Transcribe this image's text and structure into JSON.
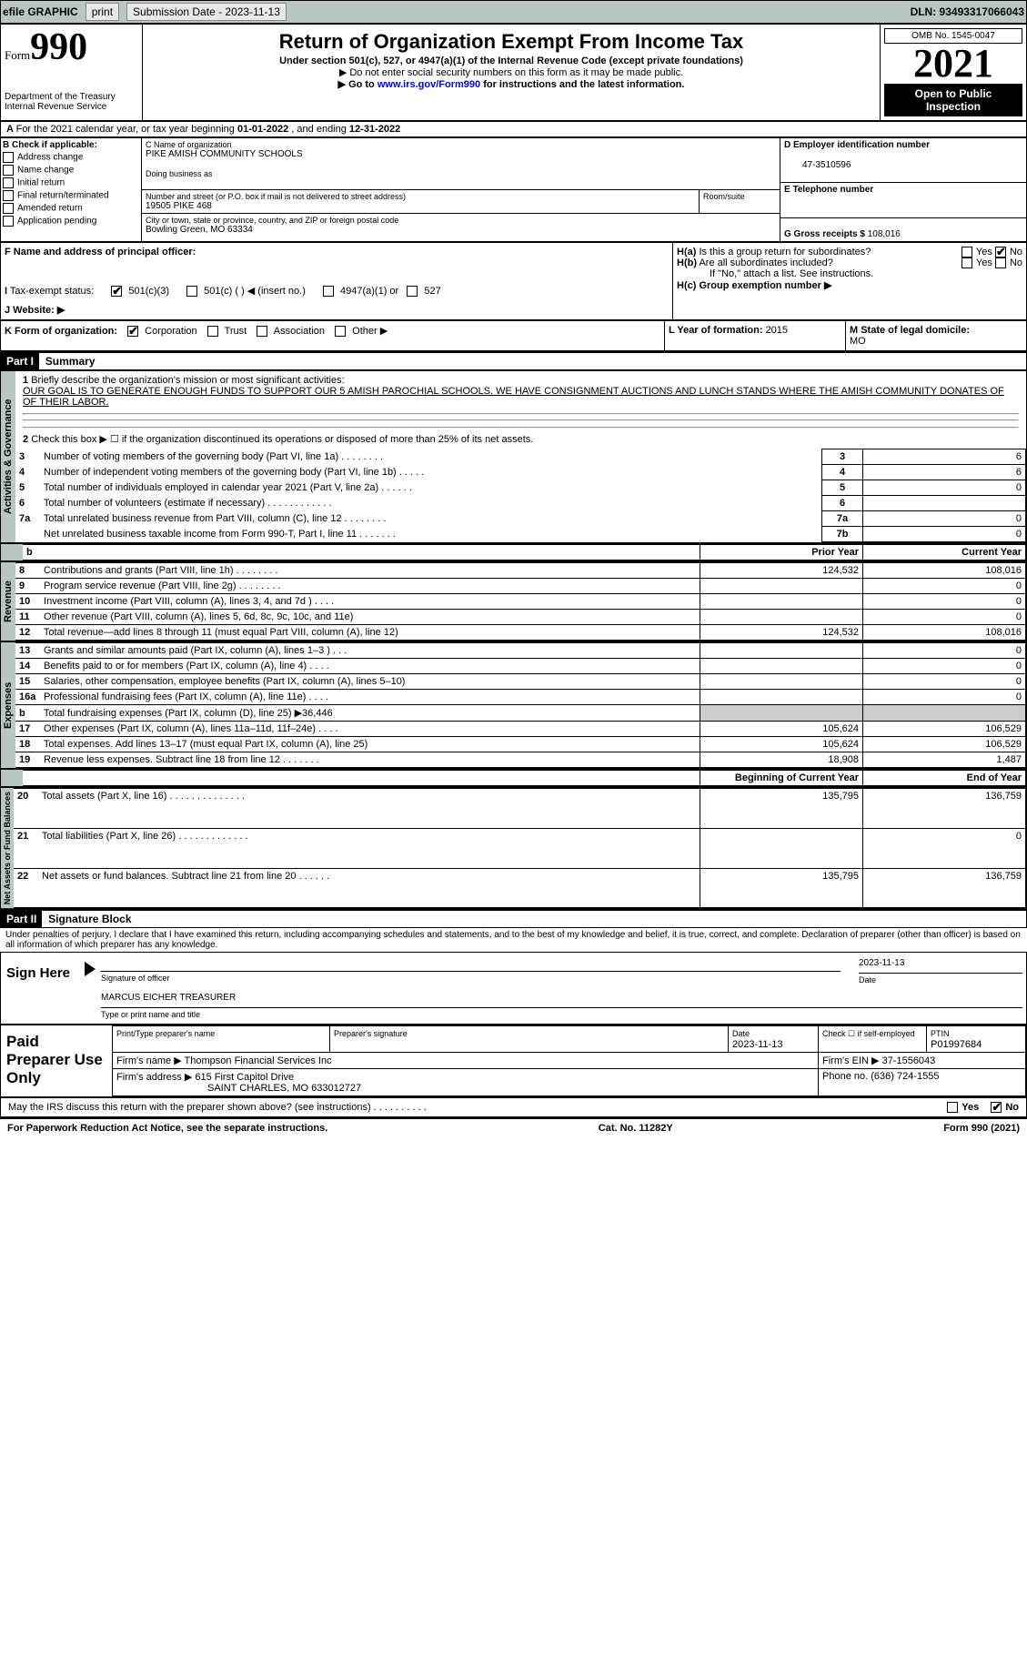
{
  "top_bar": {
    "efile": "efile GRAPHIC",
    "print": "print",
    "sub_label": "Submission Date - 2023-11-13",
    "dln_label": "DLN: 93493317066043"
  },
  "header": {
    "form_small": "Form",
    "form_num": "990",
    "dept": "Department of the Treasury",
    "irs": "Internal Revenue Service",
    "title": "Return of Organization Exempt From Income Tax",
    "sub1": "Under section 501(c), 527, or 4947(a)(1) of the Internal Revenue Code (except private foundations)",
    "sub2": "▶ Do not enter social security numbers on this form as it may be made public.",
    "sub3_pre": "▶ Go to ",
    "sub3_link": "www.irs.gov/Form990",
    "sub3_post": " for instructions and the latest information.",
    "omb": "OMB No. 1545-0047",
    "year": "2021",
    "open": "Open to Public Inspection"
  },
  "line_a": {
    "text_pre": "For the 2021 calendar year, or tax year beginning ",
    "begin": "01-01-2022",
    "mid": " , and ending ",
    "end": "12-31-2022"
  },
  "check_b": {
    "title": "B Check if applicable:",
    "items": [
      "Address change",
      "Name change",
      "Initial return",
      "Final return/terminated",
      "Amended return",
      "Application pending"
    ]
  },
  "c": {
    "name_lbl": "C Name of organization",
    "name": "PIKE AMISH COMMUNITY SCHOOLS",
    "dba_lbl": "Doing business as",
    "addr_lbl": "Number and street (or P.O. box if mail is not delivered to street address)",
    "room_lbl": "Room/suite",
    "addr": "19505 PIKE 468",
    "city_lbl": "City or town, state or province, country, and ZIP or foreign postal code",
    "city": "Bowling Green, MO  63334"
  },
  "d": {
    "lbl": "D Employer identification number",
    "val": "47-3510596"
  },
  "e": {
    "lbl": "E Telephone number"
  },
  "g": {
    "lbl": "G Gross receipts $",
    "val": "108,016"
  },
  "f": {
    "lbl": "F Name and address of principal officer:"
  },
  "h": {
    "a": "H(a)  Is this a group return for subordinates?",
    "b": "H(b)  Are all subordinates included?",
    "bnote": "If \"No,\" attach a list. See instructions.",
    "c": "H(c)  Group exemption number ▶",
    "yes": "Yes",
    "no": "No"
  },
  "i": {
    "lbl": "I  Tax-exempt status:",
    "c3": "501(c)(3)",
    "c": "501(c) (  ) ◀ (insert no.)",
    "a": "4947(a)(1) or",
    "five": "527"
  },
  "j": {
    "lbl": "J  Website: ▶"
  },
  "k": {
    "lbl": "K Form of organization:",
    "corp": "Corporation",
    "trust": "Trust",
    "assoc": "Association",
    "other": "Other ▶"
  },
  "l": {
    "lbl": "L Year of formation: ",
    "val": "2015"
  },
  "m": {
    "lbl": "M State of legal domicile:",
    "val": "MO"
  },
  "part1": {
    "head": "Part I",
    "title": "Summary"
  },
  "summary": {
    "l1": "Briefly describe the organization's mission or most significant activities:",
    "mission": "OUR GOAL IS TO GENERATE ENOUGH FUNDS TO SUPPORT OUR 5 AMISH PAROCHIAL SCHOOLS. WE HAVE CONSIGNMENT AUCTIONS AND LUNCH STANDS WHERE THE AMISH COMMUNITY DONATES OF OF THEIR LABOR.",
    "l2": "Check this box ▶ ☐ if the organization discontinued its operations or disposed of more than 25% of its net assets.",
    "rows": [
      {
        "n": "3",
        "t": "Number of voting members of the governing body (Part VI, line 1a)  .    .    .    .    .    .    .    .",
        "box": "3",
        "v": "6"
      },
      {
        "n": "4",
        "t": "Number of independent voting members of the governing body (Part VI, line 1b)  .    .    .    .    .",
        "box": "4",
        "v": "6"
      },
      {
        "n": "5",
        "t": "Total number of individuals employed in calendar year 2021 (Part V, line 2a)  .    .    .    .    .    .",
        "box": "5",
        "v": "0"
      },
      {
        "n": "6",
        "t": "Total number of volunteers (estimate if necessary)    .    .    .    .    .    .    .    .    .    .    .    .",
        "box": "6",
        "v": ""
      },
      {
        "n": "7a",
        "t": "Total unrelated business revenue from Part VIII, column (C), line 12  .    .    .    .    .    .    .    .",
        "box": "7a",
        "v": "0"
      },
      {
        "n": "",
        "t": "Net unrelated business taxable income from Form 990-T, Part I, line 11  .    .    .    .    .    .    .",
        "box": "7b",
        "v": "0"
      }
    ],
    "col_prior": "Prior Year",
    "col_curr": "Current Year",
    "rev": [
      {
        "n": "8",
        "t": "Contributions and grants (Part VIII, line 1h)  .    .    .    .    .    .    .    .",
        "p": "124,532",
        "c": "108,016"
      },
      {
        "n": "9",
        "t": "Program service revenue (Part VIII, line 2g)  .    .    .    .    .    .    .    .",
        "p": "",
        "c": "0"
      },
      {
        "n": "10",
        "t": "Investment income (Part VIII, column (A), lines 3, 4, and 7d )  .    .    .    .",
        "p": "",
        "c": "0"
      },
      {
        "n": "11",
        "t": "Other revenue (Part VIII, column (A), lines 5, 6d, 8c, 9c, 10c, and 11e)",
        "p": "",
        "c": "0"
      },
      {
        "n": "12",
        "t": "Total revenue—add lines 8 through 11 (must equal Part VIII, column (A), line 12)",
        "p": "124,532",
        "c": "108,016"
      }
    ],
    "exp": [
      {
        "n": "13",
        "t": "Grants and similar amounts paid (Part IX, column (A), lines 1–3 )  .    .    .",
        "p": "",
        "c": "0"
      },
      {
        "n": "14",
        "t": "Benefits paid to or for members (Part IX, column (A), line 4)  .    .    .    .",
        "p": "",
        "c": "0"
      },
      {
        "n": "15",
        "t": "Salaries, other compensation, employee benefits (Part IX, column (A), lines 5–10)",
        "p": "",
        "c": "0"
      },
      {
        "n": "16a",
        "t": "Professional fundraising fees (Part IX, column (A), line 11e)  .    .    .    .",
        "p": "",
        "c": "0"
      },
      {
        "n": "b",
        "t": "Total fundraising expenses (Part IX, column (D), line 25) ▶36,446",
        "p": "shade",
        "c": "shade"
      },
      {
        "n": "17",
        "t": "Other expenses (Part IX, column (A), lines 11a–11d, 11f–24e)  .    .    .    .",
        "p": "105,624",
        "c": "106,529"
      },
      {
        "n": "18",
        "t": "Total expenses. Add lines 13–17 (must equal Part IX, column (A), line 25)",
        "p": "105,624",
        "c": "106,529"
      },
      {
        "n": "19",
        "t": "Revenue less expenses. Subtract line 18 from line 12  .    .    .    .    .    .    .",
        "p": "18,908",
        "c": "1,487"
      }
    ],
    "col_beg": "Beginning of Current Year",
    "col_end": "End of Year",
    "net": [
      {
        "n": "20",
        "t": "Total assets (Part X, line 16)  .    .    .    .    .    .    .    .    .    .    .    .    .    .",
        "p": "135,795",
        "c": "136,759"
      },
      {
        "n": "21",
        "t": "Total liabilities (Part X, line 26)  .    .    .    .    .    .    .    .    .    .    .    .    .",
        "p": "",
        "c": "0"
      },
      {
        "n": "22",
        "t": "Net assets or fund balances. Subtract line 21 from line 20  .    .    .    .    .    .",
        "p": "135,795",
        "c": "136,759"
      }
    ],
    "side_act": "Activities & Governance",
    "side_rev": "Revenue",
    "side_exp": "Expenses",
    "side_net": "Net Assets or Fund Balances"
  },
  "part2": {
    "head": "Part II",
    "title": "Signature Block"
  },
  "sig": {
    "decl": "Under penalties of perjury, I declare that I have examined this return, including accompanying schedules and statements, and to the best of my knowledge and belief, it is true, correct, and complete. Declaration of preparer (other than officer) is based on all information of which preparer has any knowledge.",
    "sign_here": "Sign Here",
    "sig_lbl": "Signature of officer",
    "date_lbl": "Date",
    "date": "2023-11-13",
    "name": "MARCUS EICHER  TREASURER",
    "name_lbl": "Type or print name and title",
    "paid": "Paid Preparer Use Only",
    "prep_name_lbl": "Print/Type preparer's name",
    "prep_sig_lbl": "Preparer's signature",
    "prep_date_lbl": "Date",
    "prep_date": "2023-11-13",
    "check_self": "Check ☐ if self-employed",
    "ptin_lbl": "PTIN",
    "ptin": "P01997684",
    "firm_name_lbl": "Firm's name    ▶",
    "firm_name": "Thompson Financial Services Inc",
    "firm_ein_lbl": "Firm's EIN ▶",
    "firm_ein": "37-1556043",
    "firm_addr_lbl": "Firm's address ▶",
    "firm_addr1": "615 First Capitol Drive",
    "firm_addr2": "SAINT CHARLES, MO  633012727",
    "phone_lbl": "Phone no.",
    "phone": "(636) 724-1555",
    "discuss": "May the IRS discuss this return with the preparer shown above? (see instructions)  .    .    .    .    .    .    .    .    .    .",
    "yes": "Yes",
    "no": "No"
  },
  "footer": {
    "l": "For Paperwork Reduction Act Notice, see the separate instructions.",
    "m": "Cat. No. 11282Y",
    "r": "Form 990 (2021)"
  }
}
